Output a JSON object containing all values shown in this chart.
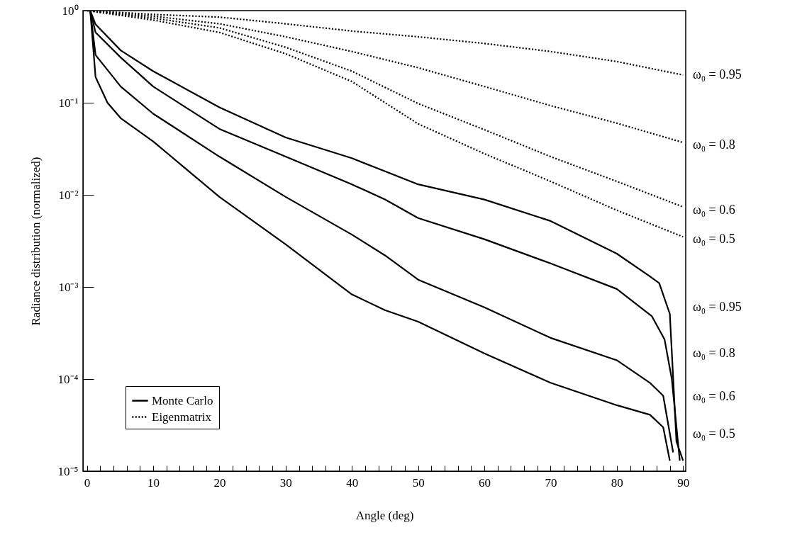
{
  "chart_data": {
    "type": "line",
    "xlabel": "Angle (deg)",
    "ylabel": "Radiance distribution (normalized)",
    "log": "y",
    "grid": false,
    "legend": "bottom left",
    "xlim": [
      -0.6,
      90.4
    ],
    "ylim": [
      1e-05,
      1
    ],
    "xticks": [
      0,
      {
        "value": 2,
        "label": null
      },
      {
        "value": 4,
        "label": null
      },
      {
        "value": 6,
        "label": null
      },
      {
        "value": 8,
        "label": null
      },
      10,
      {
        "value": 12,
        "label": null
      },
      {
        "value": 14,
        "label": null
      },
      {
        "value": 16,
        "label": null
      },
      {
        "value": 18,
        "label": null
      },
      20,
      {
        "value": 22,
        "label": null
      },
      {
        "value": 24,
        "label": null
      },
      {
        "value": 26,
        "label": null
      },
      {
        "value": 28,
        "label": null
      },
      30,
      {
        "value": 32,
        "label": null
      },
      {
        "value": 34,
        "label": null
      },
      {
        "value": 36,
        "label": null
      },
      {
        "value": 38,
        "label": null
      },
      40,
      {
        "value": 42,
        "label": null
      },
      {
        "value": 44,
        "label": null
      },
      {
        "value": 46,
        "label": null
      },
      {
        "value": 48,
        "label": null
      },
      50,
      {
        "value": 52,
        "label": null
      },
      {
        "value": 54,
        "label": null
      },
      {
        "value": 56,
        "label": null
      },
      {
        "value": 58,
        "label": null
      },
      60,
      {
        "value": 62,
        "label": null
      },
      {
        "value": 64,
        "label": null
      },
      {
        "value": 66,
        "label": null
      },
      {
        "value": 68,
        "label": null
      },
      70,
      {
        "value": 72,
        "label": null
      },
      {
        "value": 74,
        "label": null
      },
      {
        "value": 76,
        "label": null
      },
      {
        "value": 78,
        "label": null
      },
      80,
      {
        "value": 82,
        "label": null
      },
      {
        "value": 84,
        "label": null
      },
      {
        "value": 86,
        "label": null
      },
      {
        "value": 88,
        "label": null
      },
      90
    ],
    "yticks": [
      {
        "value": 1e-05,
        "label": "10⁻⁵"
      },
      {
        "value": 0.0001,
        "label": "10⁻⁴"
      },
      {
        "value": 0.001,
        "label": "10⁻³"
      },
      {
        "value": 0.01,
        "label": "10⁻²"
      },
      {
        "value": 0.1,
        "label": "10⁻¹"
      },
      {
        "value": 1,
        "label": "10⁰"
      }
    ],
    "series": [
      {
        "name": "Monte Carlo",
        "color": "#000000",
        "line_style": "solid",
        "x": [
          0.5,
          1.3,
          5.1,
          10,
          20,
          30,
          40,
          45,
          50,
          60,
          70,
          80,
          85,
          86.4,
          88,
          89,
          90
        ],
        "values": [
          1,
          0.71,
          0.37,
          0.22,
          0.089,
          0.042,
          0.025,
          0.018,
          0.013,
          0.0089,
          0.0052,
          0.0023,
          0.0013,
          0.0011,
          0.00051,
          2.1e-05,
          1.3e-05
        ]
      },
      {
        "color": "#000000",
        "line_style": "solid",
        "x": [
          0.5,
          1.3,
          5.1,
          10,
          20,
          30,
          40,
          45,
          50,
          60,
          70,
          80,
          85.3,
          87.2,
          88.3,
          89.5
        ],
        "values": [
          1,
          0.58,
          0.31,
          0.15,
          0.052,
          0.026,
          0.013,
          0.0089,
          0.0056,
          0.0033,
          0.0018,
          0.00095,
          0.00048,
          0.00027,
          0.0001,
          1.3e-05
        ]
      },
      {
        "color": "#000000",
        "line_style": "solid",
        "x": [
          0.5,
          1.3,
          5.1,
          10,
          20,
          30,
          40,
          45,
          50,
          60,
          70,
          80,
          85,
          87,
          88.5
        ],
        "values": [
          1,
          0.33,
          0.15,
          0.076,
          0.026,
          0.0095,
          0.0037,
          0.0022,
          0.0012,
          0.0006,
          0.00028,
          0.00016,
          9.1e-05,
          6.6e-05,
          1.6e-05
        ]
      },
      {
        "color": "#000000",
        "line_style": "solid",
        "x": [
          0.5,
          1.3,
          3.1,
          5.1,
          10,
          20,
          30,
          40,
          45,
          50,
          60,
          70,
          80,
          85,
          87,
          88
        ],
        "values": [
          1,
          0.19,
          0.1,
          0.068,
          0.038,
          0.0095,
          0.0029,
          0.00083,
          0.00056,
          0.00042,
          0.00019,
          9.1e-05,
          5.2e-05,
          4.1e-05,
          3e-05,
          1.3e-05
        ]
      },
      {
        "name": "Eigenmatrix",
        "color": "#000000",
        "line_style": "dotted",
        "x": [
          0,
          10,
          20,
          30,
          40,
          50,
          60,
          70,
          80,
          90
        ],
        "values": [
          1,
          0.91,
          0.85,
          0.72,
          0.6,
          0.52,
          0.44,
          0.36,
          0.28,
          0.2
        ]
      },
      {
        "color": "#000000",
        "line_style": "dotted",
        "x": [
          0,
          10,
          20,
          30,
          40,
          50,
          60,
          70,
          80,
          90
        ],
        "values": [
          1,
          0.87,
          0.72,
          0.52,
          0.36,
          0.24,
          0.15,
          0.093,
          0.06,
          0.037
        ]
      },
      {
        "color": "#000000",
        "line_style": "dotted",
        "x": [
          0,
          10,
          20,
          30,
          40,
          50,
          60,
          70,
          80,
          90
        ],
        "values": [
          1,
          0.83,
          0.65,
          0.4,
          0.22,
          0.098,
          0.051,
          0.026,
          0.014,
          0.0074
        ]
      },
      {
        "color": "#000000",
        "line_style": "dotted",
        "x": [
          0,
          10,
          20,
          30,
          40,
          50,
          60,
          70,
          80,
          90
        ],
        "values": [
          1,
          0.79,
          0.58,
          0.34,
          0.17,
          0.059,
          0.028,
          0.014,
          0.0068,
          0.0035
        ]
      }
    ],
    "annotations": [
      "ω₀ = 0.95",
      "ω₀ = 0.8",
      "ω₀ = 0.6",
      "ω₀ = 0.5",
      "ω₀ = 0.95",
      "ω₀ = 0.8",
      "ω₀ = 0.6",
      "ω₀ = 0.5"
    ]
  }
}
